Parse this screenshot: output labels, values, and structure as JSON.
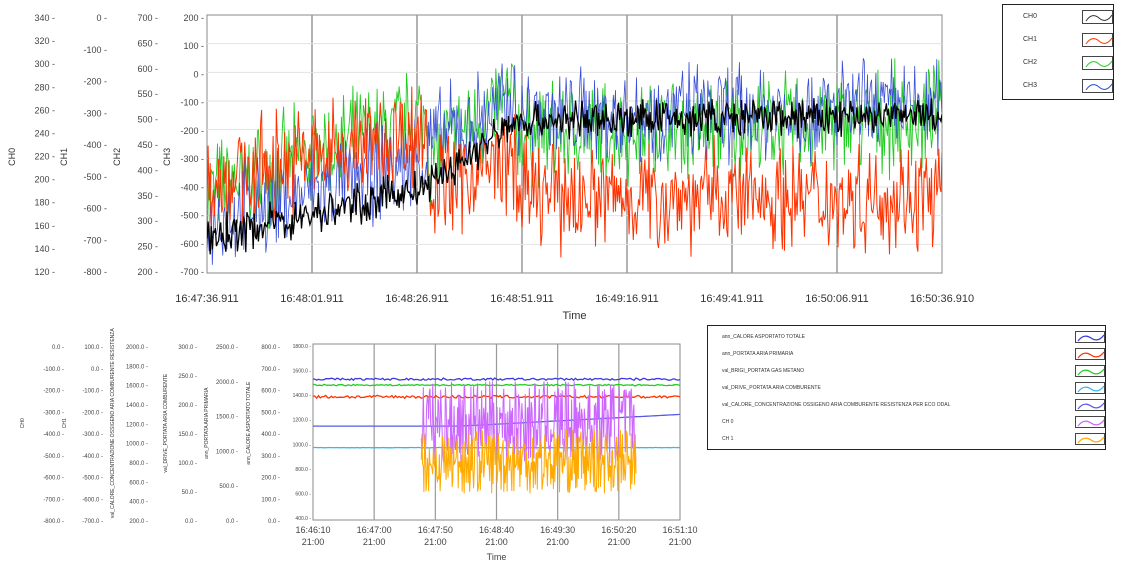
{
  "chart_data": [
    {
      "type": "line",
      "title": "",
      "xlabel": "Time",
      "x_ticks": [
        "16:47:36.911",
        "16:48:01.911",
        "16:48:26.911",
        "16:48:51.911",
        "16:49:16.911",
        "16:49:41.911",
        "16:50:06.911",
        "16:50:36.910"
      ],
      "grid": true,
      "legend_position": "top-right",
      "axes": [
        {
          "label": "CH0",
          "ticks": [
            "340",
            "320",
            "300",
            "280",
            "260",
            "240",
            "220",
            "200",
            "180",
            "160",
            "140",
            "120"
          ],
          "ylim": [
            120,
            340
          ]
        },
        {
          "label": "CH1",
          "ticks": [
            "0",
            "-100",
            "-200",
            "-300",
            "-400",
            "-500",
            "-600",
            "-700",
            "-800"
          ],
          "ylim": [
            -800,
            0
          ]
        },
        {
          "label": "CH2",
          "ticks": [
            "700",
            "650",
            "600",
            "550",
            "500",
            "450",
            "400",
            "350",
            "300",
            "250",
            "200"
          ],
          "ylim": [
            200,
            700
          ]
        },
        {
          "label": "CH3",
          "ticks": [
            "200",
            "100",
            "0",
            "-100",
            "-200",
            "-300",
            "-400",
            "-500",
            "-600",
            "-700"
          ],
          "ylim": [
            -700,
            200
          ]
        }
      ],
      "series": [
        {
          "name": "CH0",
          "color": "#3a3acc",
          "legend_line": "#333333"
        },
        {
          "name": "CH1",
          "color": "#ff3300",
          "legend_line": "#ff3300"
        },
        {
          "name": "CH2",
          "color": "#22cc22",
          "legend_line": "#22cc22"
        },
        {
          "name": "CH3",
          "color": "#1f4fcc",
          "legend_line": "#1f4fcc"
        }
      ],
      "trace_colors": [
        "#22cc22",
        "#ff3300",
        "#3a4fd8",
        "#000000"
      ],
      "segments": [
        {
          "x0": 0.0,
          "x1": 0.3,
          "black": [
            -580,
            -400
          ],
          "red": [
            -380,
            -200
          ],
          "green": [
            -420,
            -150
          ],
          "blue": [
            -520,
            -300
          ]
        },
        {
          "x0": 0.3,
          "x1": 0.42,
          "black": [
            -400,
            -170
          ],
          "red": [
            -420,
            -300
          ],
          "green": [
            -300,
            -80
          ],
          "blue": [
            -250,
            -100
          ]
        },
        {
          "x0": 0.42,
          "x1": 1.0,
          "black": [
            -170,
            -150
          ],
          "red": [
            -430,
            -430
          ],
          "green": [
            -220,
            -160
          ],
          "blue": [
            -150,
            -120
          ]
        }
      ]
    },
    {
      "type": "line",
      "title": "",
      "xlabel": "Time",
      "x_ticks": [
        [
          "16:46:10",
          "21:00"
        ],
        [
          "16:47:00",
          "21:00"
        ],
        [
          "16:47:50",
          "21:00"
        ],
        [
          "16:48:40",
          "21:00"
        ],
        [
          "16:49:30",
          "21:00"
        ],
        [
          "16:50:20",
          "21:00"
        ],
        [
          "16:51:10",
          "21:00"
        ]
      ],
      "grid": true,
      "legend_position": "right",
      "axes": [
        {
          "label": "CH0",
          "ticks": [
            "0.0",
            "-100.0",
            "-200.0",
            "-300.0",
            "-400.0",
            "-500.0",
            "-600.0",
            "-700.0",
            "-800.0"
          ],
          "ylim": [
            -800,
            0
          ]
        },
        {
          "label": "CH1",
          "ticks": [
            "100.0",
            "0.0",
            "-100.0",
            "-200.0",
            "-300.0",
            "-400.0",
            "-500.0",
            "-600.0",
            "-700.0"
          ],
          "ylim": [
            -700,
            100
          ]
        },
        {
          "label": "val_CALORE_CONCENTRAZIONE OSSIGENO ARIA COMBURENTE RESISTENZA",
          "ticks": [
            "2000.0",
            "1800.0",
            "1600.0",
            "1400.0",
            "1200.0",
            "1000.0",
            "800.0",
            "600.0",
            "400.0",
            "200.0"
          ],
          "ylim": [
            200,
            2000
          ]
        },
        {
          "label": "val_DRIVE_PORTATA ARIA COMBURENTE",
          "ticks": [
            "300.0",
            "250.0",
            "200.0",
            "150.0",
            "100.0",
            "50.0",
            "0.0"
          ],
          "ylim": [
            0,
            300
          ]
        },
        {
          "label": "ann_PORTATA ARIA PRIMARIA",
          "ticks": [
            "2500.0",
            "2000.0",
            "1500.0",
            "1000.0",
            "500.0",
            "0.0"
          ],
          "ylim": [
            0,
            2500
          ]
        },
        {
          "label": "ann_CALORE ASPORTATO TOTALE",
          "ticks": [
            "800.0",
            "700.0",
            "600.0",
            "500.0",
            "400.0",
            "300.0",
            "200.0",
            "100.0",
            "0.0"
          ],
          "ylim": [
            0,
            800
          ]
        }
      ],
      "y_ticks_main": [
        "1800.0",
        "1600.0",
        "1400.0",
        "1200.0",
        "1000.0",
        "800.0",
        "600.0",
        "400.0"
      ],
      "series": [
        {
          "name": "ann_CALORE ASPORTATO TOTALE",
          "color": "#3a3ae0",
          "level": 1640
        },
        {
          "name": "ann_PORTATA ARIA PRIMARIA",
          "color": "#ff3300",
          "level": 1460
        },
        {
          "name": "val_BRIGI_PORTATA GAS METANO",
          "color": "#22cc22",
          "level": 1580
        },
        {
          "name": "val_DRIVE_PORTATA ARIA COMBURENTE",
          "color": "#33bbee",
          "level": 940
        },
        {
          "name": "val_CALORE_CONCENTRAZIONE OSSIGENO ARIA COMBURENTE RESISTENZA PER ECO ODAL",
          "color": "#5a5ae6",
          "level": 1180
        },
        {
          "name": "CH 0",
          "color": "#cc66ff",
          "level": 1200
        },
        {
          "name": "CH 1",
          "color": "#ffaa00",
          "level": 800
        }
      ]
    }
  ]
}
